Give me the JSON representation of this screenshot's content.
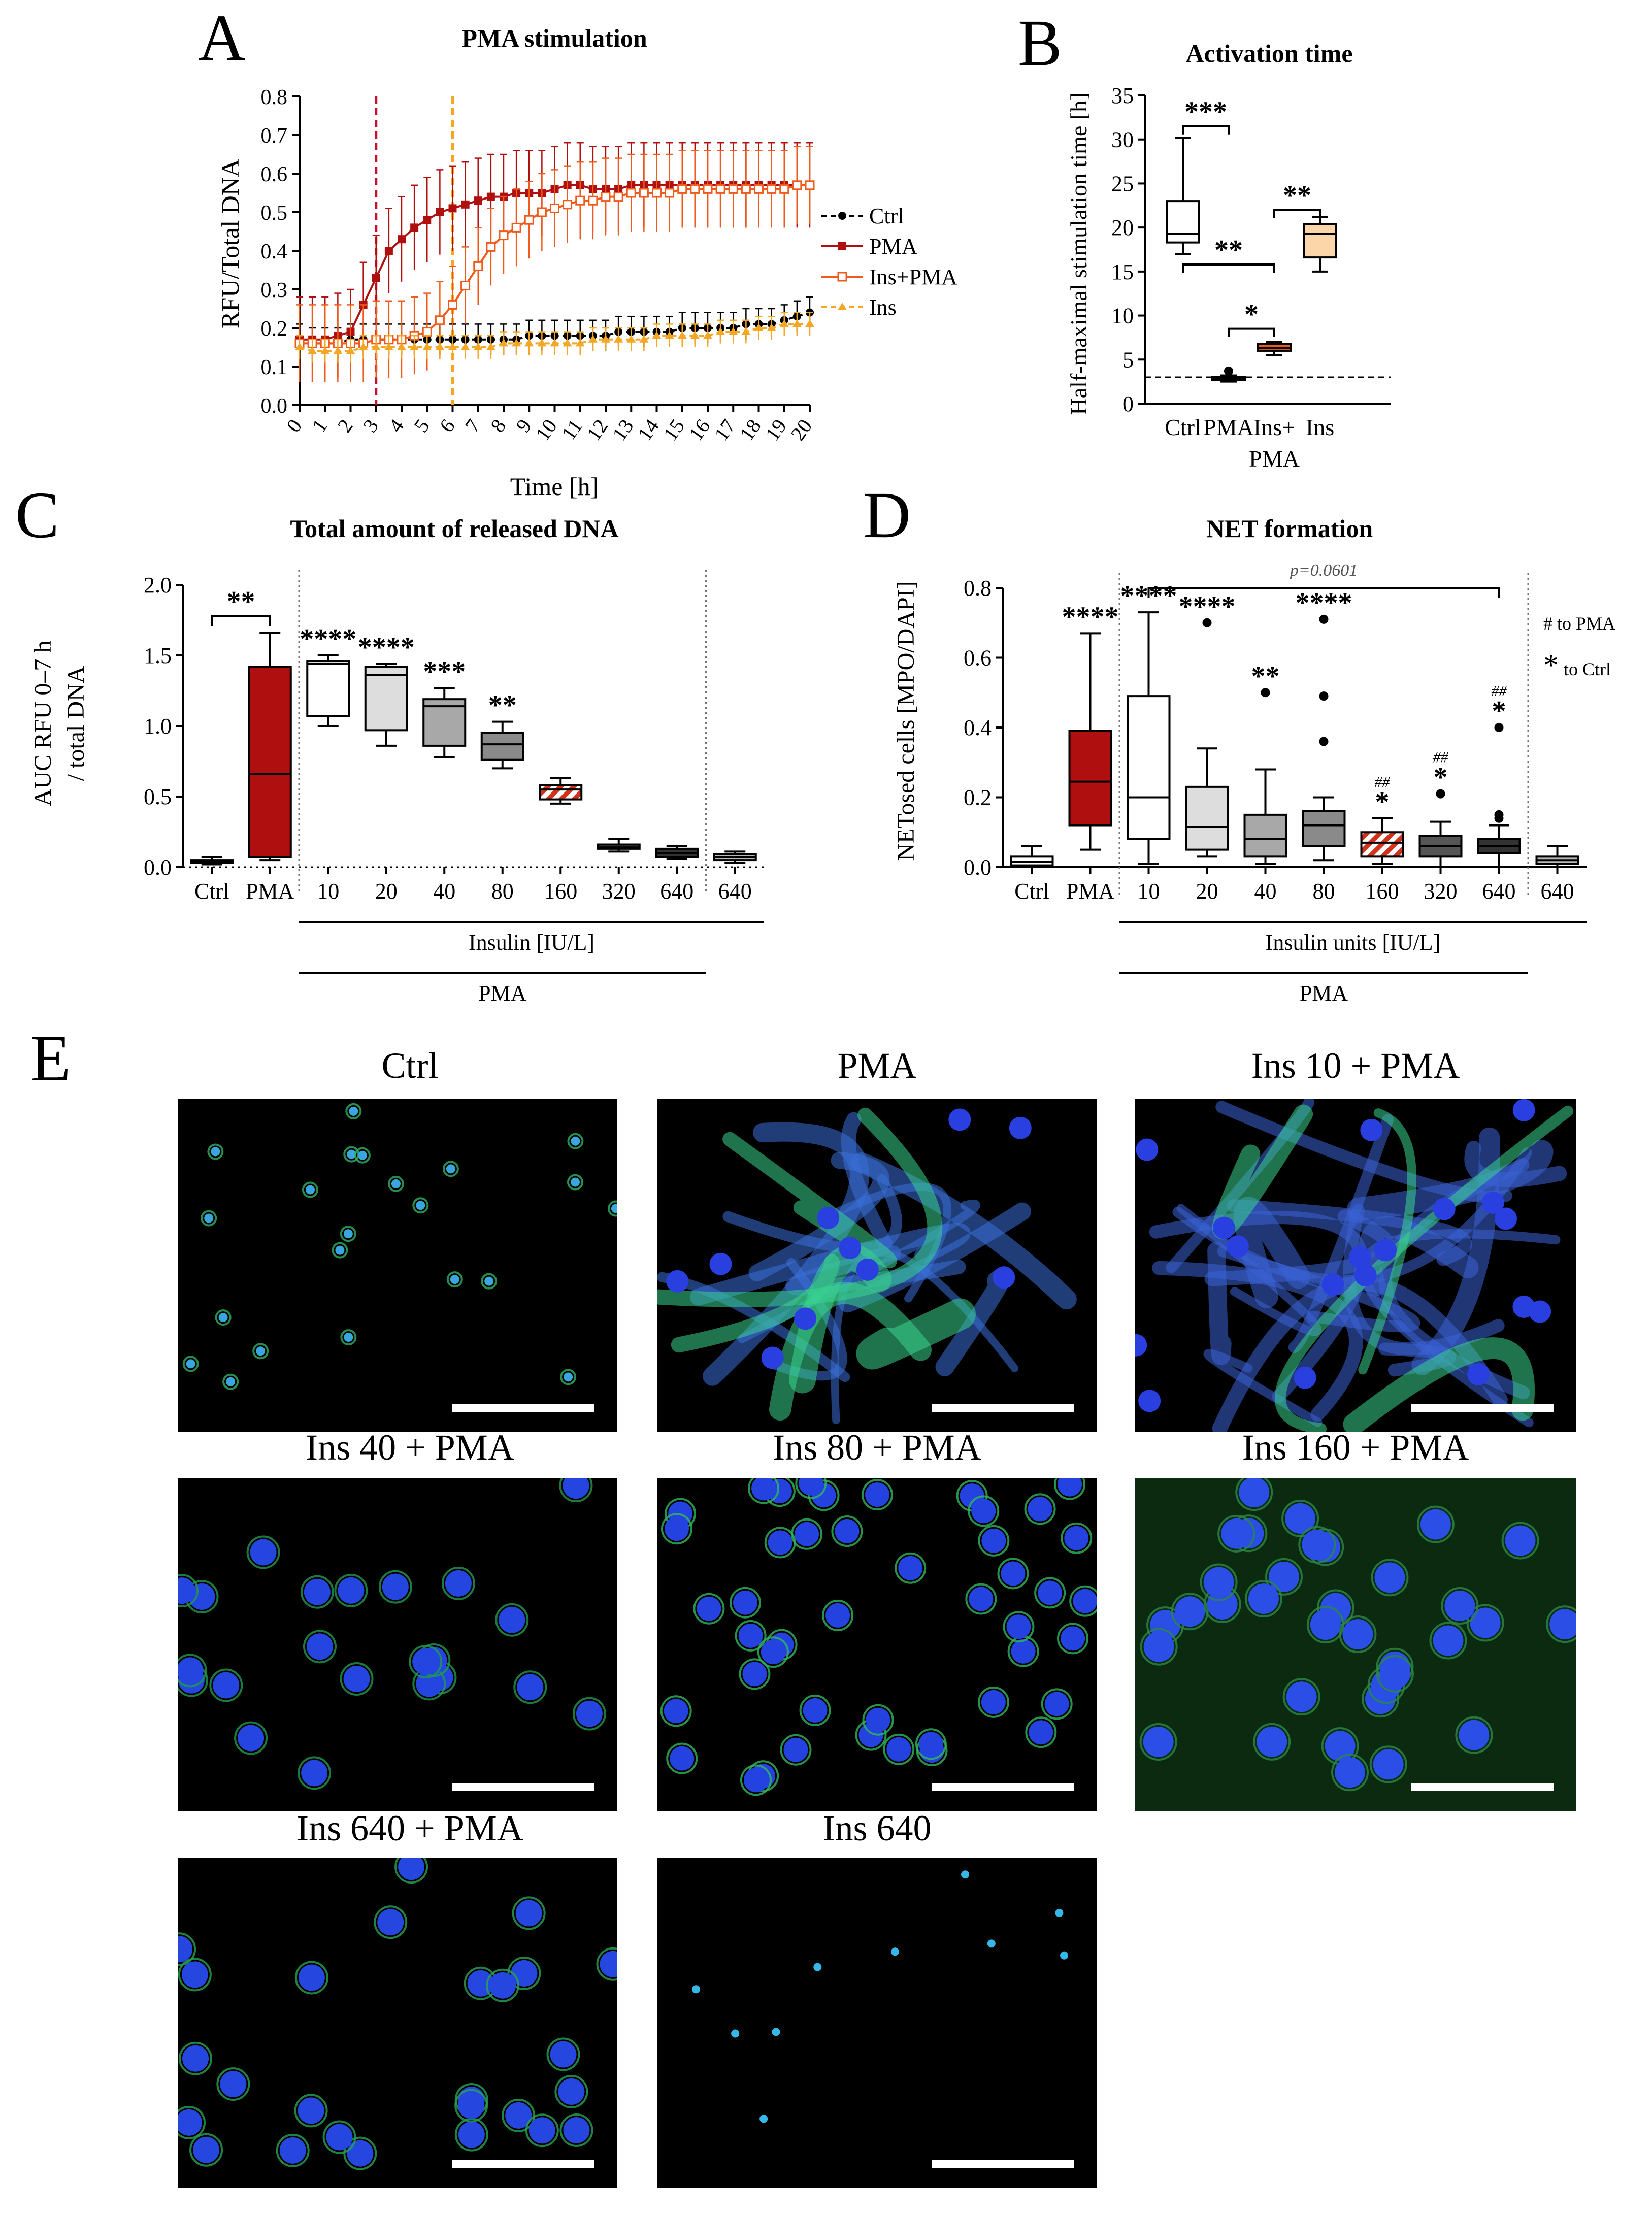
{
  "panel_letters": [
    "A",
    "B",
    "C",
    "D",
    "E"
  ],
  "chart_data": [
    {
      "panel": "A",
      "type": "line",
      "title": "PMA stimulation",
      "xlabel": "Time [h]",
      "ylabel": "RFU/Total DNA",
      "xlim": [
        0,
        20
      ],
      "ylim": [
        0,
        0.8
      ],
      "x_step": 0.5,
      "x_ticks": [
        "0",
        "1",
        "2",
        "3",
        "4",
        "5",
        "6",
        "7",
        "8",
        "9",
        "10",
        "11",
        "12",
        "13",
        "14",
        "15",
        "16",
        "17",
        "18",
        "19",
        "20"
      ],
      "y_ticks": [
        "0.0",
        "0.1",
        "0.2",
        "0.3",
        "0.4",
        "0.5",
        "0.6",
        "0.7",
        "0.8"
      ],
      "vlines": [
        {
          "x": 3,
          "color": "#c8102e"
        },
        {
          "x": 6,
          "color": "#f5a623"
        }
      ],
      "legend_position": "right",
      "series": [
        {
          "name": "Ctrl",
          "color": "#000000",
          "marker": "circle",
          "dash": "dashed",
          "values": [
            0.17,
            0.16,
            0.16,
            0.16,
            0.17,
            0.17,
            0.17,
            0.17,
            0.17,
            0.17,
            0.17,
            0.17,
            0.17,
            0.17,
            0.17,
            0.17,
            0.17,
            0.17,
            0.18,
            0.18,
            0.18,
            0.18,
            0.18,
            0.18,
            0.18,
            0.19,
            0.19,
            0.19,
            0.19,
            0.19,
            0.2,
            0.2,
            0.2,
            0.2,
            0.2,
            0.21,
            0.21,
            0.21,
            0.22,
            0.23,
            0.24
          ],
          "err": 0.04
        },
        {
          "name": "PMA",
          "color": "#b00f0f",
          "marker": "square",
          "dash": "solid",
          "values": [
            0.17,
            0.17,
            0.17,
            0.18,
            0.19,
            0.26,
            0.33,
            0.4,
            0.43,
            0.46,
            0.48,
            0.5,
            0.51,
            0.52,
            0.53,
            0.54,
            0.54,
            0.55,
            0.55,
            0.55,
            0.56,
            0.57,
            0.57,
            0.56,
            0.56,
            0.56,
            0.57,
            0.57,
            0.57,
            0.57,
            0.57,
            0.57,
            0.57,
            0.57,
            0.57,
            0.57,
            0.57,
            0.57,
            0.57,
            0.57,
            0.57
          ],
          "err": 0.11
        },
        {
          "name": "Ins+PMA",
          "color": "#f05a1a",
          "marker": "square-open",
          "dash": "solid",
          "values": [
            0.16,
            0.16,
            0.16,
            0.16,
            0.16,
            0.16,
            0.17,
            0.17,
            0.17,
            0.18,
            0.19,
            0.22,
            0.26,
            0.31,
            0.36,
            0.41,
            0.44,
            0.46,
            0.48,
            0.5,
            0.51,
            0.52,
            0.53,
            0.53,
            0.54,
            0.54,
            0.55,
            0.55,
            0.55,
            0.55,
            0.56,
            0.56,
            0.56,
            0.56,
            0.56,
            0.56,
            0.56,
            0.56,
            0.56,
            0.57,
            0.57
          ],
          "err": 0.1
        },
        {
          "name": "Ins",
          "color": "#f5a623",
          "marker": "triangle",
          "dash": "dashed",
          "values": [
            0.15,
            0.14,
            0.14,
            0.14,
            0.14,
            0.15,
            0.15,
            0.15,
            0.15,
            0.15,
            0.15,
            0.15,
            0.15,
            0.15,
            0.15,
            0.15,
            0.16,
            0.16,
            0.16,
            0.16,
            0.16,
            0.16,
            0.16,
            0.17,
            0.17,
            0.17,
            0.17,
            0.17,
            0.18,
            0.18,
            0.18,
            0.18,
            0.18,
            0.19,
            0.19,
            0.19,
            0.2,
            0.2,
            0.21,
            0.21,
            0.21
          ],
          "err": 0.03
        }
      ]
    },
    {
      "panel": "B",
      "type": "box",
      "title": "Activation time",
      "ylabel": "Half-maximal stimulation time [h]",
      "ylim": [
        0,
        35
      ],
      "y_ticks": [
        "0",
        "5",
        "10",
        "15",
        "20",
        "25",
        "30",
        "35"
      ],
      "hline": 3,
      "categories": [
        "Ctrl",
        "PMA",
        "Ins+ PMA",
        "Ins"
      ],
      "category_lines": [
        [
          "Ctrl"
        ],
        [
          "PMA"
        ],
        [
          "Ins+",
          "PMA"
        ],
        [
          "Ins"
        ]
      ],
      "boxes": [
        {
          "min": 17,
          "q1": 18.3,
          "median": 19.3,
          "q3": 23,
          "max": 30.2,
          "fill": "#ffffff",
          "outliers": []
        },
        {
          "min": 2.5,
          "q1": 2.7,
          "median": 2.9,
          "q3": 3.0,
          "max": 3.2,
          "fill": "#b00f0f",
          "outliers": [
            3.7
          ]
        },
        {
          "min": 5.5,
          "q1": 6.0,
          "median": 6.3,
          "q3": 6.8,
          "max": 7.0,
          "fill": "#f05a1a",
          "outliers": []
        },
        {
          "min": 15,
          "q1": 16.6,
          "median": 19.3,
          "q3": 20.4,
          "max": 21.2,
          "fill": "#fcd5a8",
          "outliers": []
        }
      ],
      "brackets": [
        {
          "from": 0,
          "to": 1,
          "y": 31.5,
          "label": "***"
        },
        {
          "from": 0,
          "to": 2,
          "y": 15.8,
          "label": "**"
        },
        {
          "from": 1,
          "to": 2,
          "y": 8.5,
          "label": "*"
        },
        {
          "from": 2,
          "to": 3,
          "y": 22,
          "label": "**"
        }
      ]
    },
    {
      "panel": "C",
      "type": "box",
      "title": "Total amount of released DNA",
      "ylabel_lines": [
        "AUC RFU 0–7 h",
        "/ total  DNA"
      ],
      "ylim": [
        0,
        2.0
      ],
      "y_ticks": [
        "0.0",
        "0.5",
        "1.0",
        "1.5",
        "2.0"
      ],
      "categories": [
        "Ctrl",
        "PMA",
        "10",
        "20",
        "40",
        "80",
        "160",
        "320",
        "640",
        "640"
      ],
      "boxes": [
        {
          "min": 0.02,
          "q1": 0.03,
          "median": 0.04,
          "q3": 0.05,
          "max": 0.07,
          "fill": "#ffffff",
          "label": ""
        },
        {
          "min": 0.05,
          "q1": 0.07,
          "median": 0.66,
          "q3": 1.42,
          "max": 1.66,
          "fill": "#b00f0f",
          "label": ""
        },
        {
          "min": 1.0,
          "q1": 1.07,
          "median": 1.44,
          "q3": 1.46,
          "max": 1.5,
          "fill": "#ffffff",
          "label": "****"
        },
        {
          "min": 0.86,
          "q1": 0.97,
          "median": 1.36,
          "q3": 1.42,
          "max": 1.44,
          "fill": "#dddddd",
          "label": "****"
        },
        {
          "min": 0.78,
          "q1": 0.86,
          "median": 1.14,
          "q3": 1.19,
          "max": 1.27,
          "fill": "#a8a8a8",
          "label": "***"
        },
        {
          "min": 0.7,
          "q1": 0.76,
          "median": 0.87,
          "q3": 0.95,
          "max": 1.03,
          "fill": "#8a8a8a",
          "label": "**"
        },
        {
          "min": 0.45,
          "q1": 0.48,
          "median": 0.55,
          "q3": 0.58,
          "max": 0.63,
          "fill": "hatch",
          "label": ""
        },
        {
          "min": 0.11,
          "q1": 0.13,
          "median": 0.14,
          "q3": 0.16,
          "max": 0.2,
          "fill": "#555555",
          "label": ""
        },
        {
          "min": 0.06,
          "q1": 0.07,
          "median": 0.1,
          "q3": 0.13,
          "max": 0.15,
          "fill": "#333333",
          "label": ""
        },
        {
          "min": 0.03,
          "q1": 0.05,
          "median": 0.07,
          "q3": 0.09,
          "max": 0.11,
          "fill": "#bbbbbb",
          "label": ""
        }
      ],
      "brackets": [
        {
          "from": 0,
          "to": 1,
          "y": 1.78,
          "label": "**"
        }
      ],
      "dividers": [
        1.5,
        8.5
      ],
      "group_labels": [
        {
          "text": "Insulin [IU/L]",
          "from": 2,
          "to": 9
        },
        {
          "text": "PMA",
          "from": 2,
          "to": 8
        }
      ]
    },
    {
      "panel": "D",
      "type": "box",
      "title": "NET  formation",
      "ylabel": "NETosed cells [MPO/DAPI]",
      "ylim": [
        0,
        0.8
      ],
      "y_ticks": [
        "0.0",
        "0.2",
        "0.4",
        "0.6",
        "0.8"
      ],
      "categories": [
        "Ctrl",
        "PMA",
        "10",
        "20",
        "40",
        "80",
        "160",
        "320",
        "640",
        "640"
      ],
      "boxes": [
        {
          "min": 0.0,
          "q1": 0.005,
          "median": 0.015,
          "q3": 0.03,
          "max": 0.06,
          "fill": "#ffffff",
          "outliers": [],
          "label": ""
        },
        {
          "min": 0.05,
          "q1": 0.12,
          "median": 0.245,
          "q3": 0.39,
          "max": 0.67,
          "fill": "#b00f0f",
          "outliers": [],
          "label": "****"
        },
        {
          "min": 0.01,
          "q1": 0.08,
          "median": 0.2,
          "q3": 0.49,
          "max": 0.73,
          "fill": "#ffffff",
          "outliers": [],
          "label": "****"
        },
        {
          "min": 0.03,
          "q1": 0.05,
          "median": 0.115,
          "q3": 0.23,
          "max": 0.34,
          "fill": "#dddddd",
          "outliers": [
            0.7
          ],
          "label": "****"
        },
        {
          "min": 0.01,
          "q1": 0.03,
          "median": 0.08,
          "q3": 0.15,
          "max": 0.28,
          "fill": "#a8a8a8",
          "outliers": [
            0.5
          ],
          "label": "**"
        },
        {
          "min": 0.02,
          "q1": 0.06,
          "median": 0.12,
          "q3": 0.16,
          "max": 0.2,
          "fill": "#8a8a8a",
          "outliers": [
            0.36,
            0.49,
            0.71
          ],
          "label": "****"
        },
        {
          "min": 0.01,
          "q1": 0.03,
          "median": 0.07,
          "q3": 0.1,
          "max": 0.14,
          "fill": "hatch",
          "outliers": [],
          "label": "*",
          "hash": "##"
        },
        {
          "min": 0.0,
          "q1": 0.03,
          "median": 0.06,
          "q3": 0.09,
          "max": 0.13,
          "fill": "#555555",
          "outliers": [
            0.21
          ],
          "label": "*",
          "hash": "##"
        },
        {
          "min": 0.0,
          "q1": 0.04,
          "median": 0.06,
          "q3": 0.08,
          "max": 0.12,
          "fill": "#333333",
          "outliers": [
            0.14,
            0.15,
            0.4
          ],
          "label": "*",
          "hash": "##"
        },
        {
          "min": 0.0,
          "q1": 0.01,
          "median": 0.02,
          "q3": 0.03,
          "max": 0.06,
          "fill": "#bbbbbb",
          "outliers": [],
          "label": ""
        }
      ],
      "bracket": {
        "from": 2,
        "to": 8,
        "y": 0.8,
        "label": "p=0.0601"
      },
      "dividers": [
        1.5,
        8.5
      ],
      "side_notes": [
        "# to PMA",
        "*",
        "to Ctrl"
      ],
      "group_labels": [
        {
          "text": "Insulin units [IU/L]",
          "from": 2,
          "to": 9
        },
        {
          "text": "PMA",
          "from": 2,
          "to": 8
        }
      ]
    }
  ],
  "micrographs": {
    "titles": [
      "Ctrl",
      "PMA",
      "Ins 10 + PMA",
      "Ins 40 + PMA",
      "Ins 80  + PMA",
      "Ins 160 + PMA",
      "Ins 640 + PMA",
      "Ins 640"
    ]
  },
  "colors": {
    "ctrl": "#000000",
    "pma": "#b00f0f",
    "ins_pma": "#f05a1a",
    "ins": "#f5a623",
    "dapi": "#1f3bd6",
    "mpo": "#37c46a"
  }
}
